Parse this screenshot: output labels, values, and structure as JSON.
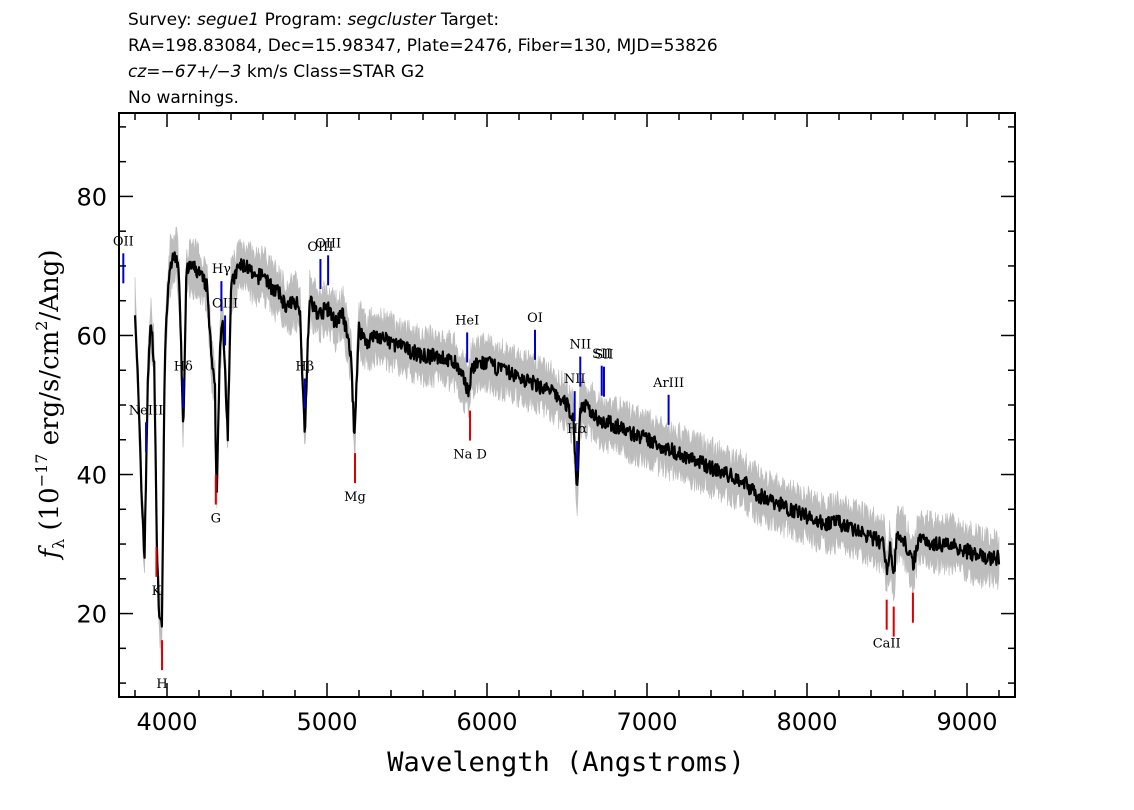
{
  "header": {
    "line1": {
      "survey_label": "Survey: ",
      "survey": "segue1",
      "program_label": " Program: ",
      "program": "segcluster",
      "target_label": " Target:"
    },
    "line2": "RA=198.83084, Dec=15.98347, Plate=2476, Fiber=130, MJD=53826",
    "line3": {
      "cz_label": "cz",
      "cz_value": "=−67+/−3",
      "rest": " km/s Class=STAR G2"
    },
    "line4": "No warnings."
  },
  "colors": {
    "flux": "#000000",
    "error": "#bdbdbd",
    "emission": "#0000cc",
    "absorption": "#dd0000"
  },
  "chart_data": {
    "type": "line",
    "xlabel": "Wavelength (Angstroms)",
    "ylabel": "f_λ (10^-17 erg/s/cm^2/Ang)",
    "xlim": [
      3700,
      9300
    ],
    "ylim": [
      8,
      92
    ],
    "x_ticks": [
      4000,
      5000,
      6000,
      7000,
      8000,
      9000
    ],
    "y_ticks": [
      20,
      40,
      60,
      80
    ],
    "series": [
      {
        "role": "flux",
        "x": [
          3800,
          3820,
          3840,
          3860,
          3880,
          3900,
          3920,
          3935,
          3950,
          3968,
          3985,
          4000,
          4020,
          4060,
          4080,
          4102,
          4120,
          4150,
          4200,
          4250,
          4280,
          4300,
          4310,
          4330,
          4350,
          4380,
          4400,
          4450,
          4500,
          4550,
          4600,
          4650,
          4700,
          4750,
          4800,
          4830,
          4861,
          4890,
          4950,
          5000,
          5050,
          5100,
          5150,
          5172,
          5185,
          5200,
          5250,
          5300,
          5400,
          5500,
          5600,
          5700,
          5800,
          5890,
          5900,
          5950,
          6000,
          6100,
          6200,
          6300,
          6400,
          6500,
          6540,
          6563,
          6580,
          6600,
          6700,
          6800,
          6900,
          7000,
          7100,
          7200,
          7300,
          7400,
          7500,
          7600,
          7700,
          7800,
          7900,
          8000,
          8100,
          8200,
          8300,
          8400,
          8480,
          8498,
          8520,
          8542,
          8560,
          8600,
          8662,
          8700,
          8800,
          8900,
          9000,
          9100,
          9200
        ],
        "y": [
          64,
          52,
          38,
          28,
          54,
          62,
          56,
          32,
          20,
          18,
          55,
          64,
          70,
          72,
          66,
          46,
          69,
          70,
          69,
          67,
          56,
          52,
          36,
          58,
          62,
          46,
          67,
          70,
          70,
          68,
          69,
          67,
          66,
          64,
          65,
          64,
          46,
          65,
          63,
          64,
          62,
          63,
          57,
          45,
          54,
          61,
          59,
          60,
          59,
          58,
          57,
          57,
          56,
          52,
          55,
          56,
          56,
          55,
          54,
          53,
          52,
          50,
          48,
          37,
          49,
          50,
          48,
          47,
          46,
          45,
          44,
          43,
          42,
          41,
          40,
          39,
          37,
          36,
          35,
          34,
          33,
          33,
          32,
          31,
          30,
          26,
          30,
          25,
          31,
          31,
          27,
          31,
          30,
          30,
          29,
          28,
          28
        ]
      }
    ],
    "line_labels": [
      {
        "label": "OII",
        "x": 3727,
        "kind": "emission"
      },
      {
        "label": "NeIII",
        "x": 3869,
        "kind": "emission"
      },
      {
        "label": "Hδ",
        "x": 4102,
        "kind": "emission"
      },
      {
        "label": "Hγ",
        "x": 4340,
        "kind": "emission"
      },
      {
        "label": "OIII",
        "x": 4363,
        "kind": "emission"
      },
      {
        "label": "Hβ",
        "x": 4861,
        "kind": "emission"
      },
      {
        "label": "OIII",
        "x": 4959,
        "kind": "emission"
      },
      {
        "label": "OIII",
        "x": 5007,
        "kind": "emission"
      },
      {
        "label": "HeI",
        "x": 5876,
        "kind": "emission"
      },
      {
        "label": "OI",
        "x": 6300,
        "kind": "emission"
      },
      {
        "label": "NII",
        "x": 6548,
        "kind": "emission"
      },
      {
        "label": "Hα",
        "x": 6563,
        "kind": "emission"
      },
      {
        "label": "NII",
        "x": 6583,
        "kind": "emission"
      },
      {
        "label": "SII",
        "x": 6717,
        "kind": "emission"
      },
      {
        "label": "SII",
        "x": 6731,
        "kind": "emission"
      },
      {
        "label": "ArIII",
        "x": 7135,
        "kind": "emission"
      },
      {
        "label": "K",
        "x": 3934,
        "kind": "absorption"
      },
      {
        "label": "H",
        "x": 3969,
        "kind": "absorption"
      },
      {
        "label": "G",
        "x": 4305,
        "kind": "absorption"
      },
      {
        "label": "Mg",
        "x": 5175,
        "kind": "absorption"
      },
      {
        "label": "Na D",
        "x": 5894,
        "kind": "absorption"
      },
      {
        "label": "CaII",
        "x": 8498,
        "kind": "absorption"
      },
      {
        "label": "CaII",
        "x": 8542,
        "kind": "absorption"
      },
      {
        "label": "CaII",
        "x": 8662,
        "kind": "absorption"
      }
    ]
  }
}
